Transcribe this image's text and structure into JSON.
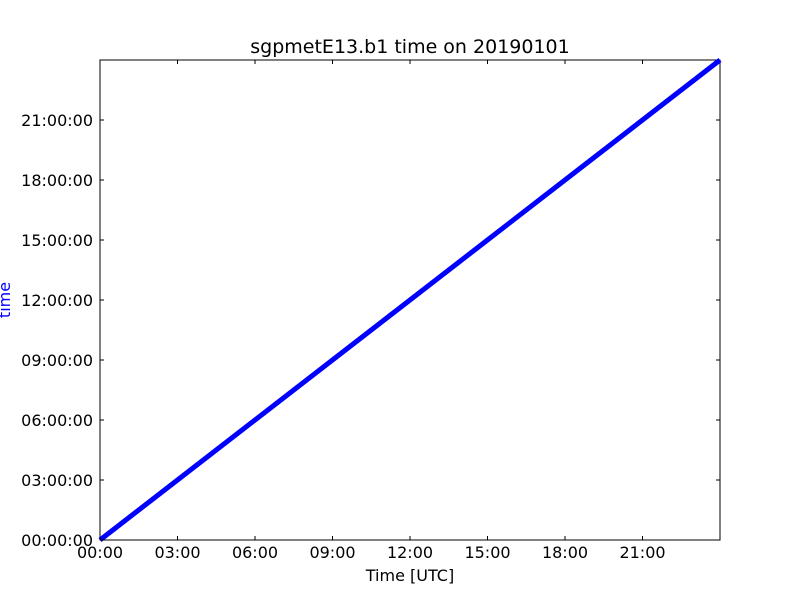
{
  "chart_data": {
    "type": "line",
    "title": "sgpmetE13.b1 time on 20190101",
    "xlabel": "Time [UTC]",
    "ylabel": "time",
    "x_unit": "hours UTC on 2019-01-01",
    "y_unit": "hours UTC on 2019-01-01",
    "xlim": [
      "00:00",
      "24:00"
    ],
    "ylim": [
      "00:00:00",
      "24:00:00"
    ],
    "x_ticks": [
      "00:00",
      "03:00",
      "06:00",
      "09:00",
      "12:00",
      "15:00",
      "18:00",
      "21:00"
    ],
    "y_ticks": [
      "00:00:00",
      "03:00:00",
      "06:00:00",
      "09:00:00",
      "12:00:00",
      "15:00:00",
      "18:00:00",
      "21:00:00"
    ],
    "grid": false,
    "legend": "none",
    "series": [
      {
        "color": "#0000ff",
        "x": [
          "00:00",
          "03:00",
          "06:00",
          "09:00",
          "12:00",
          "15:00",
          "18:00",
          "21:00",
          "24:00"
        ],
        "y": [
          "00:00:00",
          "03:00:00",
          "06:00:00",
          "09:00:00",
          "12:00:00",
          "15:00:00",
          "18:00:00",
          "21:00:00",
          "24:00:00"
        ]
      }
    ],
    "ylabel_color": "#0000ff"
  }
}
